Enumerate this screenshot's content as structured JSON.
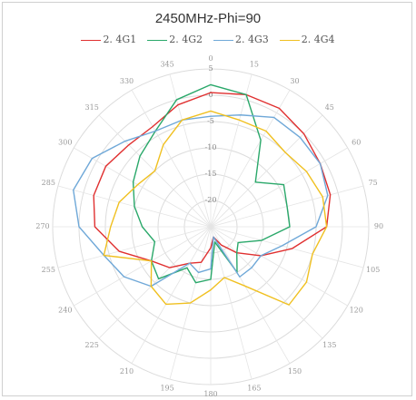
{
  "chart_data": {
    "type": "line",
    "polar": true,
    "title": "2450MHz-Phi=90",
    "legend_position": "top",
    "grid": true,
    "radial_range": [
      -25,
      5
    ],
    "radial_ticks": [
      5,
      0,
      -5,
      -10,
      -15,
      -20
    ],
    "radial_tick_labels": [
      "5",
      "0",
      "-5",
      "-10",
      "-15",
      "-20"
    ],
    "angle_ticks": [
      0,
      15,
      30,
      45,
      60,
      75,
      90,
      105,
      120,
      135,
      150,
      165,
      180,
      195,
      210,
      225,
      240,
      255,
      270,
      285,
      300,
      315,
      330,
      345
    ],
    "angle_tick_labels": [
      "0",
      "15",
      "30",
      "45",
      "60",
      "75",
      "90",
      "105",
      "120",
      "135",
      "150",
      "165",
      "180",
      "195",
      "210",
      "225",
      "240",
      "255",
      "270",
      "285",
      "300",
      "315",
      "330",
      "345"
    ],
    "angles": [
      0,
      15,
      30,
      45,
      60,
      75,
      90,
      105,
      120,
      135,
      150,
      165,
      180,
      195,
      210,
      225,
      240,
      255,
      270,
      285,
      300,
      315,
      330,
      345
    ],
    "series": [
      {
        "name": "2. 4G1",
        "color": "#e03030",
        "values": [
          0.5,
          1,
          1,
          0,
          -1,
          -1.5,
          -3,
          -9,
          -14,
          -18,
          -21,
          -23,
          -21,
          -18,
          -17,
          -14,
          -12,
          -7,
          -3,
          -2,
          -2,
          -3,
          -3,
          -1
        ]
      },
      {
        "name": "2. 4G2",
        "color": "#2aa86a",
        "values": [
          2,
          1,
          -6,
          -13,
          -9,
          -10,
          -10,
          -15,
          -19,
          -18,
          -15,
          -22,
          -15,
          -14,
          -16,
          -11,
          -12,
          -14,
          -12,
          -10,
          -8,
          -6,
          -4,
          0
        ]
      },
      {
        "name": "2. 4G3",
        "color": "#6fa8d8",
        "values": [
          -4,
          -3,
          -1,
          -1,
          -1,
          -2,
          -5,
          -11,
          -14,
          -14,
          -14,
          -23,
          -17,
          -16,
          -17,
          -9,
          -6,
          -4,
          0,
          2,
          1,
          -2,
          -4,
          -4
        ]
      },
      {
        "name": "2. 4G4",
        "color": "#f0c020",
        "values": [
          -3,
          -4,
          -4,
          -5,
          -4,
          -3,
          -3,
          -5,
          -4,
          -4,
          -12,
          -15,
          -13,
          -10,
          -8,
          -9,
          -12,
          -4,
          -6,
          -7,
          -9,
          -10,
          -7,
          -4
        ]
      }
    ]
  }
}
